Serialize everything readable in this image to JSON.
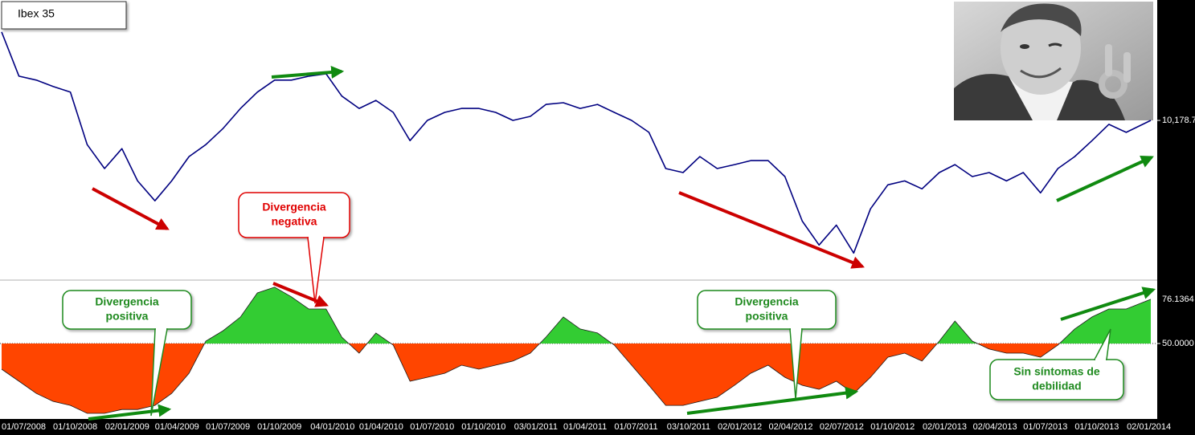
{
  "chart_data": [
    {
      "type": "line",
      "title": "Ibex 35",
      "color": "#000080",
      "x": [
        "01/07/2008",
        "01/08/2008",
        "01/09/2008",
        "01/10/2008",
        "01/11/2008",
        "01/12/2008",
        "01/01/2009",
        "01/02/2009",
        "01/03/2009",
        "01/04/2009",
        "01/05/2009",
        "01/06/2009",
        "01/07/2009",
        "01/08/2009",
        "01/09/2009",
        "01/10/2009",
        "01/11/2009",
        "01/12/2009",
        "01/01/2010",
        "01/02/2010",
        "01/03/2010",
        "01/04/2010",
        "01/05/2010",
        "01/06/2010",
        "01/07/2010",
        "01/08/2010",
        "01/09/2010",
        "01/10/2010",
        "01/11/2010",
        "01/12/2010",
        "01/01/2011",
        "01/02/2011",
        "01/03/2011",
        "01/04/2011",
        "01/05/2011",
        "01/06/2011",
        "01/07/2011",
        "01/08/2011",
        "01/09/2011",
        "01/10/2011",
        "01/11/2011",
        "01/12/2011",
        "01/01/2012",
        "01/02/2012",
        "01/03/2012",
        "01/04/2012",
        "01/05/2012",
        "01/06/2012",
        "01/07/2012",
        "01/08/2012",
        "01/09/2012",
        "01/10/2012",
        "01/11/2012",
        "01/12/2012",
        "01/01/2013",
        "01/02/2013",
        "01/03/2013",
        "01/04/2013",
        "01/05/2013",
        "01/06/2013",
        "01/07/2013",
        "01/08/2013",
        "01/09/2013",
        "01/10/2013",
        "01/11/2013",
        "01/12/2013",
        "01/01/2014",
        "14/02/2014"
      ],
      "values": [
        12840,
        11510,
        11390,
        11200,
        11030,
        9450,
        8730,
        9330,
        8360,
        7760,
        8360,
        9090,
        9450,
        9940,
        10540,
        11030,
        11390,
        11390,
        11510,
        11580,
        10910,
        10540,
        10780,
        10420,
        9570,
        10180,
        10420,
        10540,
        10540,
        10420,
        10180,
        10300,
        10660,
        10710,
        10540,
        10660,
        10420,
        10180,
        9820,
        8730,
        8610,
        9090,
        8730,
        8850,
        8970,
        8970,
        8490,
        7150,
        6430,
        7030,
        6190,
        7520,
        8240,
        8360,
        8120,
        8610,
        8850,
        8490,
        8610,
        8360,
        8610,
        8000,
        8730,
        9090,
        9570,
        10060,
        9820,
        10178.7
      ],
      "xlim": [
        "01/07/2008",
        "14/02/2014"
      ],
      "ylim": [
        5400,
        13800
      ],
      "yticks": [
        {
          "value": 10178.7,
          "label": "10,178.7"
        }
      ],
      "grid": false,
      "annotations": [
        {
          "lines": [
            "Divergencia",
            "negativa"
          ],
          "color": "#e00000"
        }
      ]
    },
    {
      "type": "area",
      "color_above": "#33cc33",
      "color_below": "#ff4500",
      "line_color": "#1a1a1a",
      "x": [
        "01/07/2008",
        "01/08/2008",
        "01/09/2008",
        "01/10/2008",
        "01/11/2008",
        "01/12/2008",
        "01/01/2009",
        "01/02/2009",
        "01/03/2009",
        "01/04/2009",
        "01/05/2009",
        "01/06/2009",
        "01/07/2009",
        "01/08/2009",
        "01/09/2009",
        "01/10/2009",
        "01/11/2009",
        "01/12/2009",
        "01/01/2010",
        "01/02/2010",
        "01/03/2010",
        "01/04/2010",
        "01/05/2010",
        "01/06/2010",
        "01/07/2010",
        "01/08/2010",
        "01/09/2010",
        "01/10/2010",
        "01/11/2010",
        "01/12/2010",
        "01/01/2011",
        "01/02/2011",
        "01/03/2011",
        "01/04/2011",
        "01/05/2011",
        "01/06/2011",
        "01/07/2011",
        "01/08/2011",
        "01/09/2011",
        "01/10/2011",
        "01/11/2011",
        "01/12/2011",
        "01/01/2012",
        "01/02/2012",
        "01/03/2012",
        "01/04/2012",
        "01/05/2012",
        "01/06/2012",
        "01/07/2012",
        "01/08/2012",
        "01/09/2012",
        "01/10/2012",
        "01/11/2012",
        "01/12/2012",
        "01/01/2013",
        "01/02/2013",
        "01/03/2013",
        "01/04/2013",
        "01/05/2013",
        "01/06/2013",
        "01/07/2013",
        "01/08/2013",
        "01/09/2013",
        "01/10/2013",
        "01/11/2013",
        "01/12/2013",
        "01/01/2014",
        "14/02/2014"
      ],
      "values": [
        34.8,
        27.7,
        20.5,
        15.8,
        13.4,
        8.7,
        8.7,
        11,
        11,
        13.4,
        20.5,
        32.4,
        51.4,
        57.6,
        65.7,
        79.9,
        83.3,
        77.6,
        70.4,
        70.4,
        53.8,
        44.3,
        56.2,
        49.1,
        27.7,
        30,
        32.4,
        37.2,
        34.8,
        37.2,
        39.6,
        44.3,
        53.8,
        65.7,
        58.6,
        56.2,
        49.1,
        37.2,
        25.3,
        13.4,
        13.4,
        15.8,
        18.2,
        25.3,
        32.4,
        37.2,
        30,
        25.3,
        22.9,
        27.7,
        20.5,
        30,
        41.9,
        44.3,
        39.6,
        51.4,
        63.3,
        51.4,
        46.7,
        44.3,
        44.3,
        41.9,
        49.1,
        58.6,
        65.7,
        70.4,
        70.4,
        76.1364
      ],
      "xlim": [
        "01/07/2008",
        "14/02/2014"
      ],
      "ylim": [
        5.4,
        87
      ],
      "yticks": [
        {
          "value": 50,
          "label": "50.0000"
        }
      ],
      "grid": true,
      "xticks": [
        "01/07/2008",
        "01/10/2008",
        "02/01/2009",
        "01/04/2009",
        "01/07/2009",
        "01/10/2009",
        "04/01/2010",
        "01/04/2010",
        "01/07/2010",
        "01/10/2010",
        "03/01/2011",
        "01/04/2011",
        "01/07/2011",
        "03/10/2011",
        "02/01/2012",
        "02/04/2012",
        "02/07/2012",
        "01/10/2012",
        "02/01/2013",
        "02/04/2013",
        "01/07/2013",
        "01/10/2013",
        "02/01/2014"
      ],
      "annotations": [
        {
          "lines": [
            "Divergencia",
            "positiva"
          ],
          "color": "#1f8a1f"
        },
        {
          "lines": [
            "Divergencia",
            "positiva"
          ],
          "color": "#1f8a1f"
        },
        {
          "lines": [
            "Sin síntomas de",
            "debilidad"
          ],
          "color": "#1f8a1f"
        }
      ]
    }
  ]
}
